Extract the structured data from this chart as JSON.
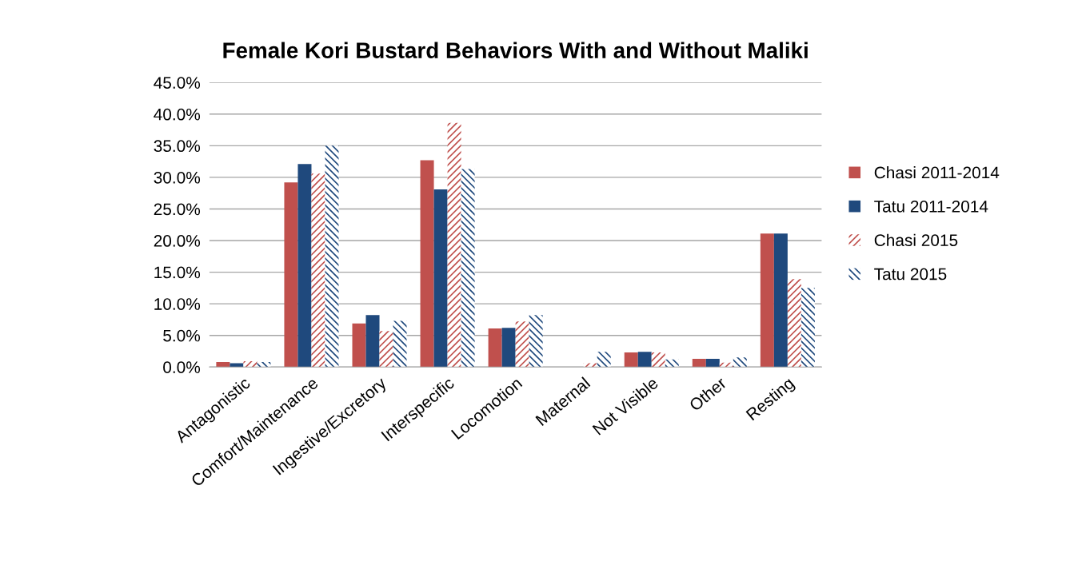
{
  "chart_data": {
    "type": "bar",
    "title": "Female Kori Bustard Behaviors With and Without Maliki",
    "categories": [
      "Antagonistic",
      "Comfort/Maintenance",
      "Ingestive/Excretory",
      "Interspecific",
      "Locomotion",
      "Maternal",
      "Not Visible",
      "Other",
      "Resting"
    ],
    "series": [
      {
        "name": "Chasi 2011-2014",
        "color": "#c0504d",
        "values": [
          0.8,
          29.2,
          6.9,
          32.7,
          6.1,
          0,
          2.3,
          1.3,
          21.1
        ]
      },
      {
        "name": "Tatu 2011-2014",
        "color": "#1f497d",
        "values": [
          0.6,
          32.1,
          8.2,
          28.1,
          6.2,
          0,
          2.4,
          1.3,
          21.1
        ]
      },
      {
        "name": "Chasi 2015",
        "color": "#c0504d",
        "values": [
          0.9,
          30.6,
          5.7,
          38.6,
          7.2,
          0.6,
          2.3,
          0.7,
          13.9
        ]
      },
      {
        "name": "Tatu 2015",
        "color": "#1f497d",
        "values": [
          0.8,
          35.0,
          7.3,
          31.3,
          8.2,
          2.4,
          1.2,
          1.5,
          12.5
        ]
      }
    ],
    "ylim": [
      0,
      45
    ],
    "yticks": [
      {
        "value": 0,
        "label": "0.0%"
      },
      {
        "value": 5,
        "label": "5.0%"
      },
      {
        "value": 10,
        "label": "10.0%"
      },
      {
        "value": 15,
        "label": "15.0%"
      },
      {
        "value": 20,
        "label": "20.0%"
      },
      {
        "value": 25,
        "label": "25.0%"
      },
      {
        "value": 30,
        "label": "30.0%"
      },
      {
        "value": 35,
        "label": "35.0%"
      },
      {
        "value": 40,
        "label": "40.0%"
      },
      {
        "value": 45,
        "label": "45.0%"
      }
    ],
    "grid": "y",
    "legend": "right"
  }
}
